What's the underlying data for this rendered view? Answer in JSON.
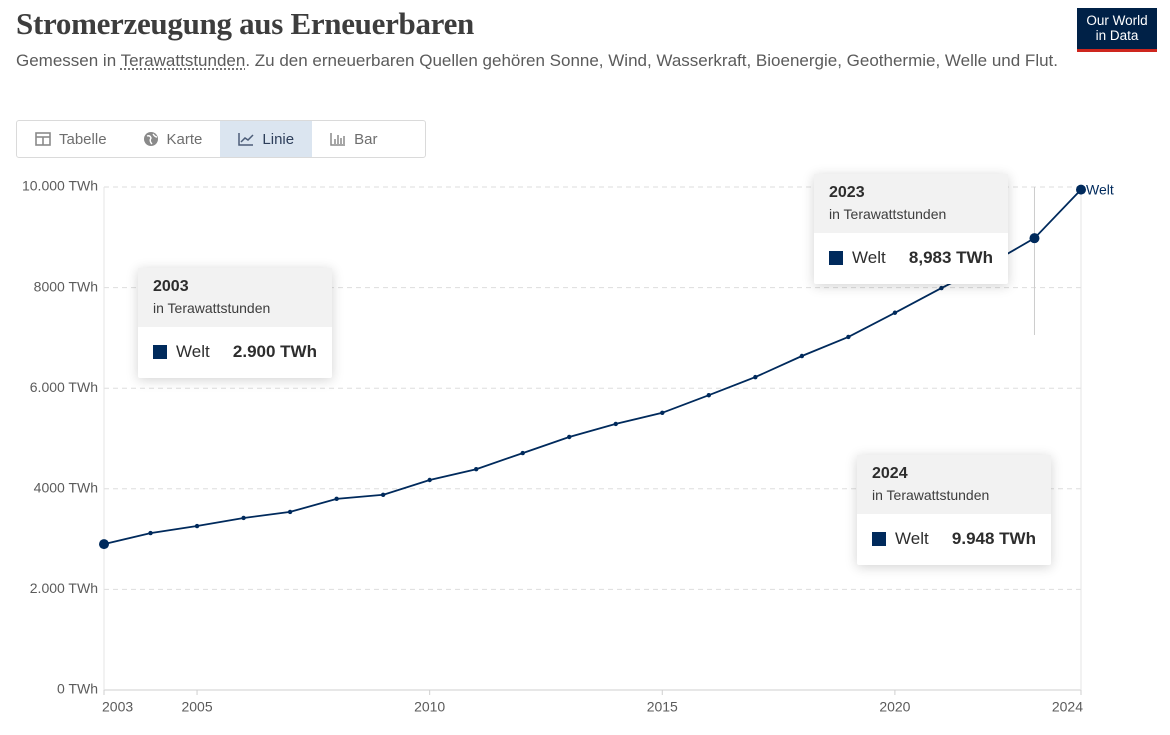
{
  "logo": [
    "Our World",
    "in Data"
  ],
  "tabs": [
    "Tabelle",
    "Karte",
    "Linie",
    "Bar"
  ],
  "active_tab": 2,
  "chart_data": {
    "type": "line",
    "title": "Stromerzeugung aus Erneuerbaren",
    "subtitle_before": "Gemessen in ",
    "subtitle_link": "Terawattstunden",
    "subtitle_after": ". Zu den erneuerbaren Quellen gehören Sonne, Wind, Wasserkraft, Bioenergie, Geothermie, Welle und Flut.",
    "x": [
      2003,
      2004,
      2005,
      2006,
      2007,
      2008,
      2009,
      2010,
      2011,
      2012,
      2013,
      2014,
      2015,
      2016,
      2017,
      2018,
      2019,
      2020,
      2021,
      2022,
      2023,
      2024
    ],
    "xlim": [
      2003,
      2024
    ],
    "xticks": [
      2003,
      2005,
      2010,
      2015,
      2020,
      2024
    ],
    "ylim": [
      0,
      10000
    ],
    "yticks": [
      {
        "value": 0,
        "label": "0 TWh"
      },
      {
        "value": 2000,
        "label": "2.000 TWh"
      },
      {
        "value": 4000,
        "label": "4000 TWh"
      },
      {
        "value": 6000,
        "label": "6.000 TWh"
      },
      {
        "value": 8000,
        "label": "8000 TWh"
      },
      {
        "value": 10000,
        "label": "10.000 TWh"
      }
    ],
    "grid": true,
    "tooltip_subtitle": "in Terawattstunden",
    "series": [
      {
        "name": "Welt",
        "color": "#002a5c",
        "values": [
          2900,
          3120,
          3260,
          3420,
          3540,
          3800,
          3880,
          4175,
          4390,
          4710,
          5030,
          5290,
          5510,
          5860,
          6220,
          6640,
          7020,
          7500,
          7990,
          8450,
          8983,
          9948
        ],
        "value_labels": [
          "2.900 TWh",
          null,
          null,
          null,
          null,
          null,
          null,
          null,
          null,
          null,
          null,
          null,
          null,
          null,
          null,
          null,
          null,
          null,
          null,
          null,
          "8,983 TWh",
          "9.948 TWh"
        ]
      }
    ]
  }
}
